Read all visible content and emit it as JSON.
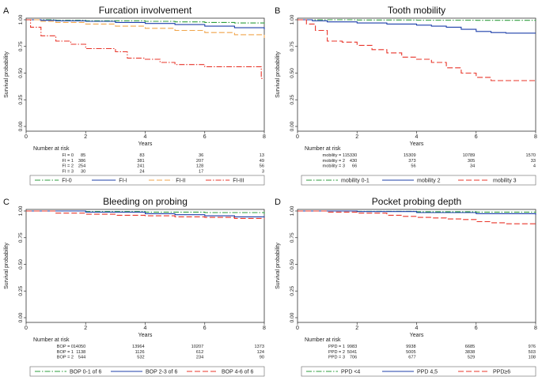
{
  "chart_data": [
    {
      "panel_label": "A",
      "type": "line",
      "title": "Furcation involvement",
      "xlabel": "Years",
      "ylabel": "Survival probability",
      "x_ticks": [
        0,
        2,
        4,
        6,
        8
      ],
      "y_ticks": [
        "0.00",
        "0.25",
        "0.50",
        "0.75",
        "1.00"
      ],
      "xlim": [
        0,
        8
      ],
      "ylim": [
        0,
        1
      ],
      "risk_table": {
        "heading": "Number at risk",
        "rows": [
          {
            "label": "FI = 0",
            "values": [
              "85",
              "83",
              "36",
              "13"
            ]
          },
          {
            "label": "FI = 1",
            "values": [
              "386",
              "381",
              "207",
              "49"
            ]
          },
          {
            "label": "FI = 2",
            "values": [
              "254",
              "241",
              "128",
              "56"
            ]
          },
          {
            "label": "FI = 3",
            "values": [
              "30",
              "24",
              "17",
              "3"
            ]
          }
        ]
      },
      "series": [
        {
          "name": "FI-0",
          "color": "#2e9e3e",
          "dash": "dashdot",
          "points": [
            [
              0,
              1.0
            ],
            [
              1,
              0.995
            ],
            [
              2,
              0.99
            ],
            [
              3,
              0.99
            ],
            [
              4,
              0.985
            ],
            [
              5,
              0.98
            ],
            [
              6,
              0.975
            ],
            [
              7,
              0.97
            ],
            [
              8,
              0.965
            ]
          ]
        },
        {
          "name": "FI-I",
          "color": "#1c3faa",
          "dash": "solid",
          "points": [
            [
              0,
              1.0
            ],
            [
              0.5,
              0.995
            ],
            [
              1,
              0.99
            ],
            [
              2,
              0.985
            ],
            [
              3,
              0.975
            ],
            [
              4,
              0.965
            ],
            [
              5,
              0.955
            ],
            [
              6,
              0.94
            ],
            [
              7,
              0.925
            ],
            [
              8,
              0.91
            ]
          ]
        },
        {
          "name": "FI-II",
          "color": "#f0a44a",
          "dash": "longdash",
          "points": [
            [
              0,
              1.0
            ],
            [
              0.5,
              0.985
            ],
            [
              1,
              0.975
            ],
            [
              2,
              0.96
            ],
            [
              3,
              0.94
            ],
            [
              4,
              0.92
            ],
            [
              5,
              0.9
            ],
            [
              6,
              0.88
            ],
            [
              7,
              0.86
            ],
            [
              8,
              0.83
            ]
          ]
        },
        {
          "name": "FI-III",
          "color": "#e8352a",
          "dash": "dashdot",
          "points": [
            [
              0,
              1.0
            ],
            [
              0.15,
              0.93
            ],
            [
              0.5,
              0.85
            ],
            [
              1,
              0.8
            ],
            [
              1.5,
              0.77
            ],
            [
              2,
              0.73
            ],
            [
              3,
              0.7
            ],
            [
              3.4,
              0.64
            ],
            [
              4,
              0.63
            ],
            [
              4.5,
              0.6
            ],
            [
              5,
              0.58
            ],
            [
              6,
              0.56
            ],
            [
              7,
              0.56
            ],
            [
              7.8,
              0.56
            ],
            [
              7.9,
              0.45
            ],
            [
              8,
              0.45
            ]
          ]
        }
      ]
    },
    {
      "panel_label": "B",
      "type": "line",
      "title": "Tooth mobility",
      "xlabel": "Years",
      "ylabel": "Survival probability",
      "x_ticks": [
        0,
        2,
        4,
        6,
        8
      ],
      "y_ticks": [
        "0.00",
        "0.25",
        "0.50",
        "0.75",
        "1.00"
      ],
      "xlim": [
        0,
        8
      ],
      "ylim": [
        0,
        1
      ],
      "risk_table": {
        "heading": "Number at risk",
        "rows": [
          {
            "label": "mobility = 1",
            "values": [
              "15330",
              "15309",
              "10789",
              "1570"
            ]
          },
          {
            "label": "mobility = 2",
            "values": [
              "430",
              "373",
              "305",
              "33"
            ]
          },
          {
            "label": "mobility = 3",
            "values": [
              "66",
              "56",
              "34",
              "4"
            ]
          }
        ]
      },
      "series": [
        {
          "name": "mobility 0-1",
          "color": "#2e9e3e",
          "dash": "dashdot",
          "points": [
            [
              0,
              1.0
            ],
            [
              2,
              0.998
            ],
            [
              4,
              0.996
            ],
            [
              6,
              0.995
            ],
            [
              8,
              0.994
            ]
          ]
        },
        {
          "name": "mobility 2",
          "color": "#1c3faa",
          "dash": "solid",
          "points": [
            [
              0,
              1.0
            ],
            [
              0.5,
              0.99
            ],
            [
              1,
              0.98
            ],
            [
              2,
              0.97
            ],
            [
              3,
              0.96
            ],
            [
              4,
              0.95
            ],
            [
              4.5,
              0.94
            ],
            [
              5,
              0.93
            ],
            [
              5.5,
              0.91
            ],
            [
              6,
              0.89
            ],
            [
              6.5,
              0.88
            ],
            [
              7,
              0.875
            ],
            [
              8,
              0.875
            ]
          ]
        },
        {
          "name": "mobility 3",
          "color": "#e8352a",
          "dash": "longdash",
          "points": [
            [
              0,
              1.0
            ],
            [
              0.3,
              0.96
            ],
            [
              0.6,
              0.9
            ],
            [
              1,
              0.8
            ],
            [
              1.5,
              0.79
            ],
            [
              2,
              0.76
            ],
            [
              2.5,
              0.72
            ],
            [
              3,
              0.69
            ],
            [
              3.5,
              0.65
            ],
            [
              4,
              0.63
            ],
            [
              4.5,
              0.6
            ],
            [
              5,
              0.55
            ],
            [
              5.5,
              0.5
            ],
            [
              6,
              0.46
            ],
            [
              6.5,
              0.43
            ],
            [
              7,
              0.43
            ],
            [
              8,
              0.43
            ]
          ]
        }
      ]
    },
    {
      "panel_label": "C",
      "type": "line",
      "title": "Bleeding on probing",
      "xlabel": "Years",
      "ylabel": "Survival probability",
      "x_ticks": [
        0,
        2,
        4,
        6,
        8
      ],
      "y_ticks": [
        "0.00",
        "0.25",
        "0.50",
        "0.75",
        "1.00"
      ],
      "xlim": [
        0,
        8
      ],
      "ylim": [
        0,
        1
      ],
      "risk_table": {
        "heading": "Number at risk",
        "rows": [
          {
            "label": "BOP = 0",
            "values": [
              "14050",
              "13964",
              "10207",
              "1373"
            ]
          },
          {
            "label": "BOP = 1",
            "values": [
              "1138",
              "1126",
              "612",
              "124"
            ]
          },
          {
            "label": "BOP = 2",
            "values": [
              "544",
              "532",
              "234",
              "90"
            ]
          }
        ]
      },
      "series": [
        {
          "name": "BOP 0-1 of 6",
          "color": "#2e9e3e",
          "dash": "dashdot",
          "points": [
            [
              0,
              1.0
            ],
            [
              2,
              0.995
            ],
            [
              4,
              0.99
            ],
            [
              6,
              0.985
            ],
            [
              8,
              0.975
            ]
          ]
        },
        {
          "name": "BOP 2-3 of 6",
          "color": "#1c3faa",
          "dash": "solid",
          "points": [
            [
              0,
              1.0
            ],
            [
              2,
              0.99
            ],
            [
              4,
              0.975
            ],
            [
              5,
              0.965
            ],
            [
              6,
              0.955
            ],
            [
              7,
              0.945
            ],
            [
              8,
              0.94
            ]
          ]
        },
        {
          "name": "BOP 4-6 of 6",
          "color": "#e8352a",
          "dash": "longdash",
          "points": [
            [
              0,
              1.0
            ],
            [
              1,
              0.98
            ],
            [
              2,
              0.97
            ],
            [
              3,
              0.96
            ],
            [
              4,
              0.955
            ],
            [
              5,
              0.945
            ],
            [
              6,
              0.94
            ],
            [
              7,
              0.93
            ],
            [
              8,
              0.925
            ]
          ]
        }
      ]
    },
    {
      "panel_label": "D",
      "type": "line",
      "title": "Pocket probing depth",
      "xlabel": "Years",
      "ylabel": "Survival probability",
      "x_ticks": [
        0,
        2,
        4,
        6,
        8
      ],
      "y_ticks": [
        "0.00",
        "0.25",
        "0.50",
        "0.75",
        "1.00"
      ],
      "xlim": [
        0,
        8
      ],
      "ylim": [
        0,
        1
      ],
      "risk_table": {
        "heading": "Number at risk",
        "rows": [
          {
            "label": "PPD = 1",
            "values": [
              "9983",
              "9938",
              "6685",
              "976"
            ]
          },
          {
            "label": "PPD = 2",
            "values": [
              "5041",
              "5005",
              "3838",
              "503"
            ]
          },
          {
            "label": "PPD = 3",
            "values": [
              "706",
              "677",
              "529",
              "108"
            ]
          }
        ]
      },
      "series": [
        {
          "name": "PPD <4",
          "color": "#2e9e3e",
          "dash": "dashdot",
          "points": [
            [
              0,
              1.0
            ],
            [
              2,
              0.997
            ],
            [
              4,
              0.993
            ],
            [
              6,
              0.99
            ],
            [
              8,
              0.985
            ]
          ]
        },
        {
          "name": "PPD 4,5",
          "color": "#1c3faa",
          "dash": "solid",
          "points": [
            [
              0,
              1.0
            ],
            [
              2,
              0.995
            ],
            [
              4,
              0.985
            ],
            [
              6,
              0.975
            ],
            [
              8,
              0.965
            ]
          ]
        },
        {
          "name": "PPD≥6",
          "color": "#e8352a",
          "dash": "longdash",
          "points": [
            [
              0,
              1.0
            ],
            [
              1,
              0.99
            ],
            [
              2,
              0.98
            ],
            [
              3,
              0.96
            ],
            [
              3.5,
              0.95
            ],
            [
              4,
              0.94
            ],
            [
              4.5,
              0.935
            ],
            [
              5,
              0.925
            ],
            [
              5.5,
              0.92
            ],
            [
              6,
              0.9
            ],
            [
              6.5,
              0.89
            ],
            [
              7,
              0.88
            ],
            [
              8,
              0.875
            ]
          ]
        }
      ]
    }
  ]
}
